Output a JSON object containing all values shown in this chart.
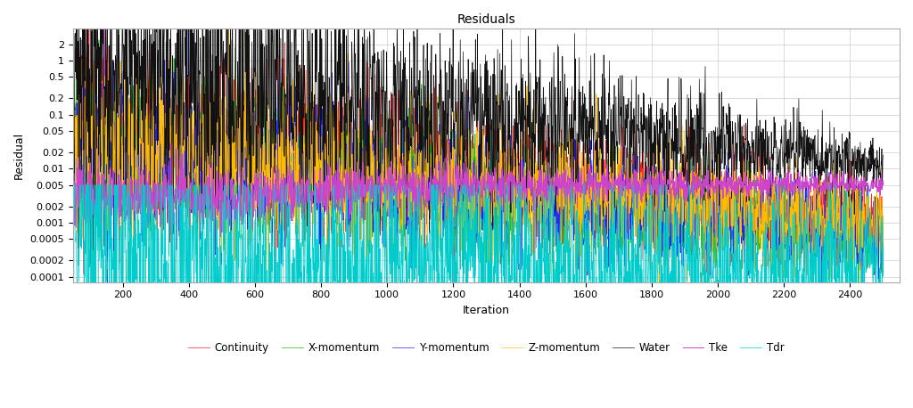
{
  "title": "Residuals",
  "xlabel": "Iteration",
  "ylabel": "Residual",
  "xlim": [
    50,
    2550
  ],
  "ylim_log": [
    8e-05,
    4.0
  ],
  "xticks": [
    200,
    400,
    600,
    800,
    1000,
    1200,
    1400,
    1600,
    1800,
    2000,
    2200,
    2400
  ],
  "yticks": [
    0.0001,
    0.0002,
    0.0005,
    0.001,
    0.002,
    0.005,
    0.01,
    0.02,
    0.05,
    0.1,
    0.2,
    0.5,
    1,
    2
  ],
  "ytick_labels": [
    "0.0001",
    "0.0002",
    "0.0005",
    "0.001",
    "0.002",
    "0.005",
    "0.01",
    "0.02",
    "0.05",
    "0.1",
    "0.2",
    "0.5",
    "1",
    "2"
  ],
  "series": [
    {
      "name": "Continuity",
      "color": "#ff2222"
    },
    {
      "name": "X-momentum",
      "color": "#22bb22"
    },
    {
      "name": "Y-momentum",
      "color": "#2222ff"
    },
    {
      "name": "Z-momentum",
      "color": "#ffbb00"
    },
    {
      "name": "Water",
      "color": "#111111"
    },
    {
      "name": "Tke",
      "color": "#cc44cc"
    },
    {
      "name": "Tdr",
      "color": "#00cccc"
    }
  ],
  "n_iter": 2500,
  "background_color": "#ffffff",
  "grid_color": "#cccccc"
}
